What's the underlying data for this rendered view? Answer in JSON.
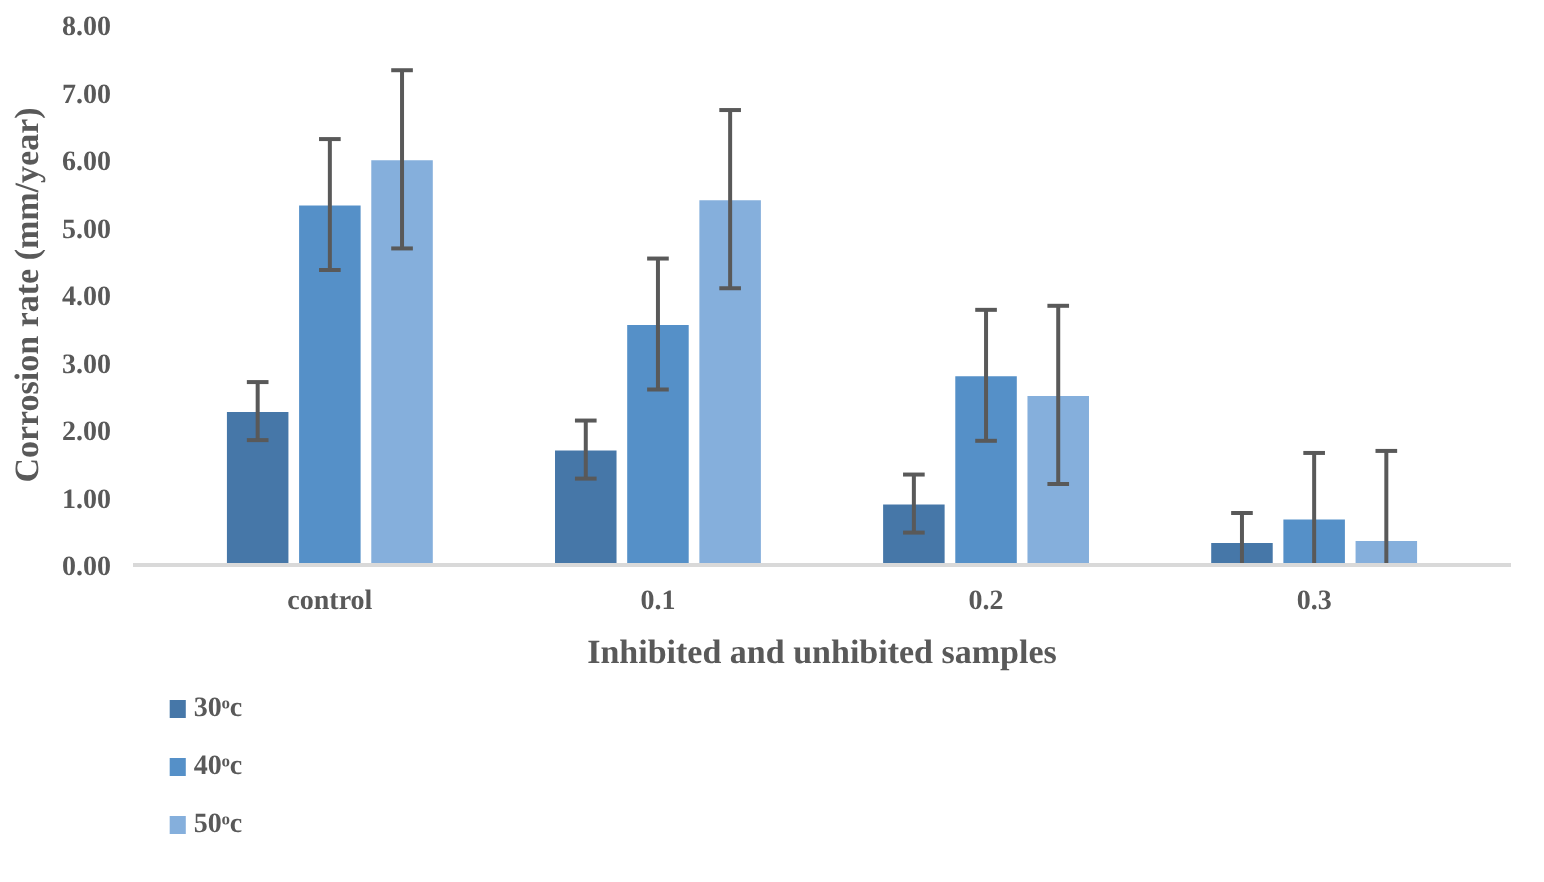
{
  "chart_data": {
    "type": "bar",
    "xlabel": "Inhibited and unhibited samples",
    "ylabel": "Corrosion rate (mm/year)",
    "categories": [
      "control",
      "0.1",
      "0.2",
      "0.3"
    ],
    "series": [
      {
        "name": "30ᵒc",
        "color": "#4677a8",
        "values": [
          2.28,
          1.71,
          0.91,
          0.34
        ],
        "errors": [
          0.43,
          0.43,
          0.43,
          [
            0,
            0.77
          ]
        ]
      },
      {
        "name": "40ᵒc",
        "color": "#5590c8",
        "values": [
          5.34,
          3.57,
          2.81,
          0.69
        ],
        "errors": [
          0.97,
          0.97,
          0.97,
          [
            0,
            1.66
          ]
        ]
      },
      {
        "name": "50ᵒc",
        "color": "#85afdc",
        "values": [
          6.01,
          5.42,
          2.52,
          0.37
        ],
        "errors": [
          1.32,
          1.32,
          1.32,
          [
            0,
            1.69
          ]
        ]
      }
    ],
    "ylim": [
      0,
      8
    ],
    "yticks": [
      {
        "value": 0,
        "label": "0.00"
      },
      {
        "value": 1,
        "label": "1.00"
      },
      {
        "value": 2,
        "label": "2.00"
      },
      {
        "value": 3,
        "label": "3.00"
      },
      {
        "value": 4,
        "label": "4.00"
      },
      {
        "value": 5,
        "label": "5.00"
      },
      {
        "value": 6,
        "label": "6.00"
      },
      {
        "value": 7,
        "label": "7.00"
      },
      {
        "value": 8,
        "label": "8.00"
      }
    ],
    "grid": false,
    "legend": "bottom left"
  }
}
